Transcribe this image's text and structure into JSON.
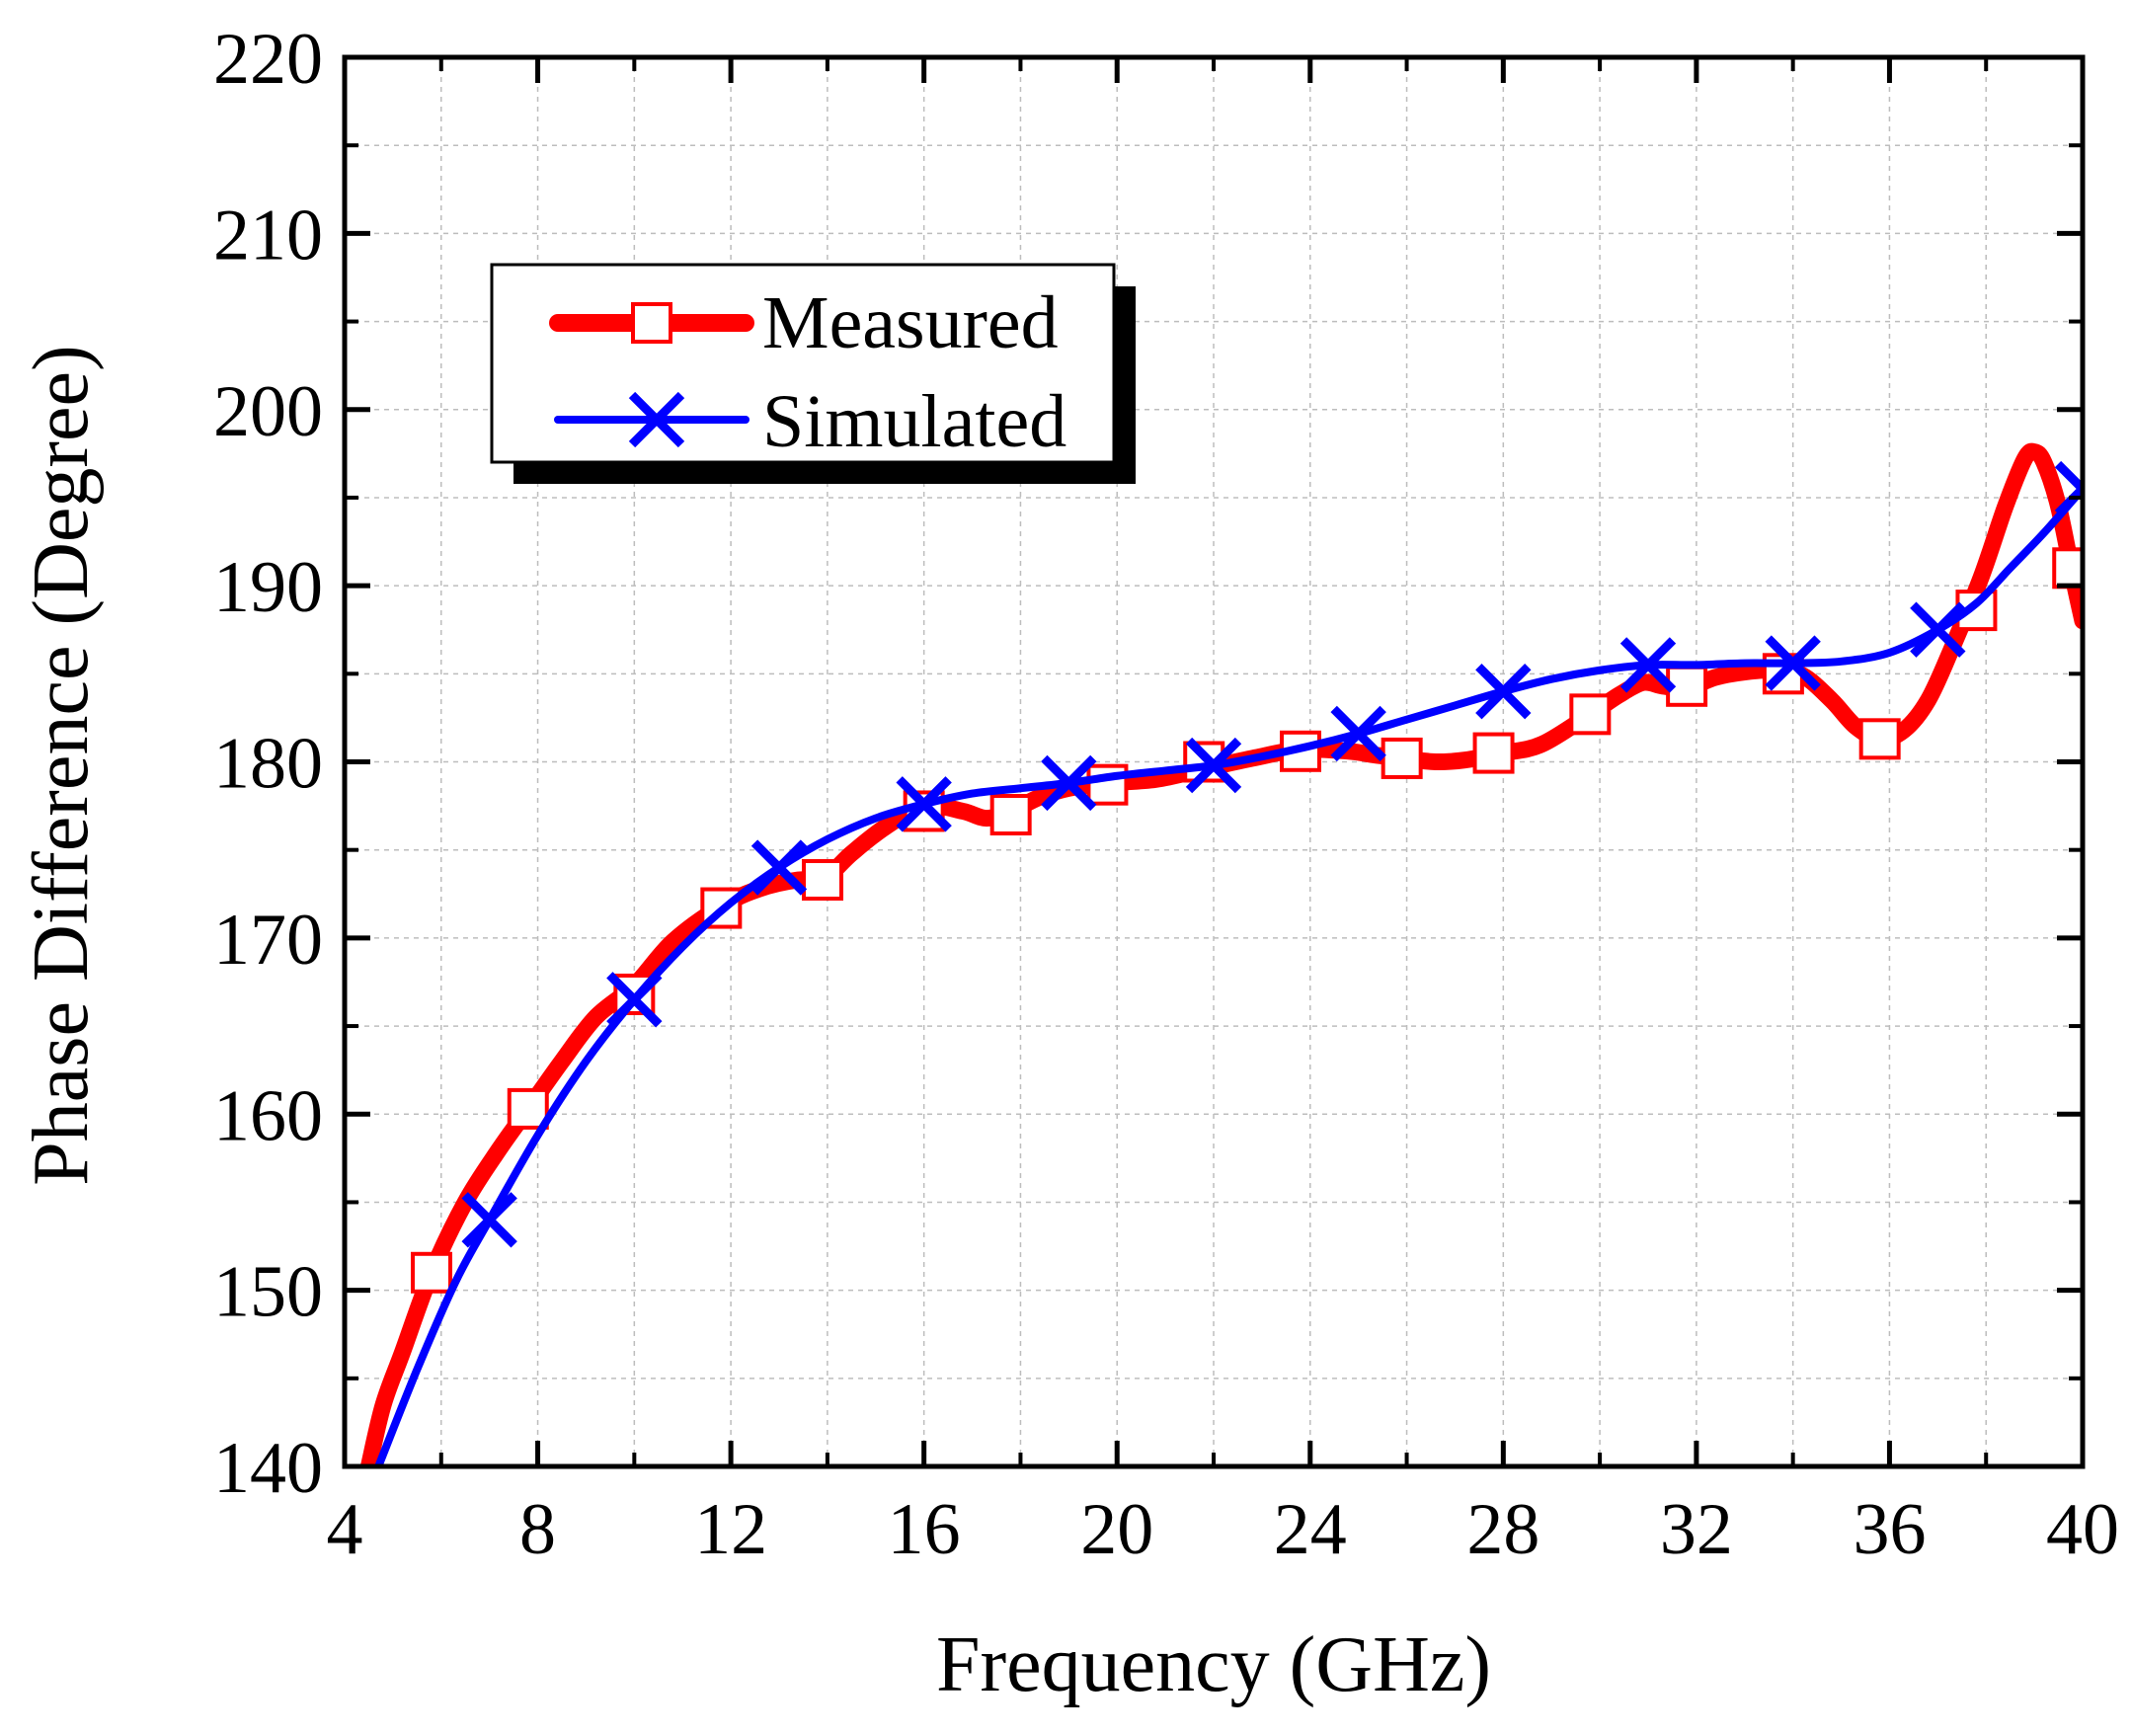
{
  "chart_data": {
    "type": "line",
    "title": "",
    "xlabel": "Frequency (GHz)",
    "ylabel": "Phase Difference (Degree)",
    "xlim": [
      4,
      40
    ],
    "ylim": [
      140,
      220
    ],
    "xticks": [
      4,
      8,
      12,
      16,
      20,
      24,
      28,
      32,
      36,
      40
    ],
    "yticks": [
      140,
      150,
      160,
      170,
      180,
      190,
      200,
      210,
      220
    ],
    "grid": true,
    "legend_position": "upper-left",
    "series": [
      {
        "name": "Measured",
        "color": "#ff0000",
        "marker": "open-square",
        "x": [
          4.5,
          4.8,
          5.2,
          5.8,
          6.5,
          7.2,
          7.8,
          8.5,
          9.2,
          10.0,
          10.8,
          11.8,
          12.6,
          13.4,
          13.9,
          14.5,
          15.2,
          16.0,
          16.8,
          17.3,
          17.8,
          18.4,
          19.0,
          19.8,
          20.8,
          21.8,
          22.8,
          23.8,
          24.8,
          25.3,
          25.9,
          26.6,
          27.2,
          28.0,
          28.8,
          29.8,
          30.4,
          30.9,
          31.3,
          31.8,
          32.4,
          33.0,
          33.6,
          34.2,
          34.8,
          35.3,
          35.8,
          36.3,
          36.8,
          37.3,
          37.9,
          38.4,
          38.8,
          39.0,
          39.2,
          39.5,
          39.8,
          40.0
        ],
        "y": [
          140.0,
          143.5,
          146.5,
          151.0,
          155.0,
          158.0,
          160.3,
          163.0,
          165.5,
          167.3,
          169.8,
          171.8,
          172.8,
          173.3,
          173.3,
          174.8,
          176.3,
          177.5,
          177.2,
          176.8,
          177.2,
          178.0,
          178.5,
          178.8,
          179.0,
          179.6,
          180.2,
          180.7,
          180.6,
          180.4,
          180.2,
          180.0,
          180.1,
          180.5,
          181.0,
          182.7,
          183.8,
          184.5,
          184.3,
          184.2,
          184.8,
          185.1,
          185.2,
          184.9,
          183.5,
          182.0,
          181.3,
          181.8,
          183.5,
          186.5,
          190.5,
          194.5,
          197.2,
          197.6,
          197.0,
          194.5,
          190.5,
          188.0
        ],
        "marker_x": [
          5.8,
          7.8,
          10.0,
          11.8,
          13.9,
          16.0,
          17.8,
          19.8,
          21.8,
          23.8,
          25.9,
          27.8,
          29.8,
          31.8,
          33.8,
          35.8,
          37.8,
          39.8
        ],
        "marker_y": [
          151.0,
          160.3,
          166.8,
          171.7,
          173.3,
          177.2,
          177.0,
          178.7,
          180.0,
          180.6,
          180.2,
          180.5,
          182.7,
          184.3,
          185.0,
          181.3,
          188.6,
          191.0
        ]
      },
      {
        "name": "Simulated",
        "color": "#0000ff",
        "marker": "x",
        "x": [
          4.7,
          5.5,
          6.3,
          7.0,
          8.0,
          9.0,
          10.0,
          11.0,
          12.0,
          13.0,
          14.0,
          15.0,
          16.0,
          17.0,
          18.0,
          19.0,
          20.0,
          21.0,
          22.0,
          23.0,
          24.0,
          25.0,
          26.0,
          27.0,
          28.0,
          29.0,
          30.0,
          31.0,
          32.0,
          33.0,
          34.0,
          35.0,
          36.0,
          37.0,
          37.8,
          38.5,
          39.2,
          40.0
        ],
        "y": [
          140.0,
          145.5,
          150.5,
          154.0,
          158.8,
          163.0,
          166.5,
          169.5,
          172.0,
          174.0,
          175.6,
          176.8,
          177.6,
          178.2,
          178.5,
          178.8,
          179.2,
          179.5,
          179.8,
          180.3,
          180.9,
          181.6,
          182.4,
          183.2,
          184.0,
          184.7,
          185.2,
          185.5,
          185.5,
          185.6,
          185.6,
          185.7,
          186.2,
          187.5,
          189.0,
          191.0,
          193.0,
          195.5
        ],
        "marker_x": [
          7.0,
          10.0,
          13.0,
          16.0,
          19.0,
          22.0,
          25.0,
          28.0,
          31.0,
          34.0,
          37.0,
          40.0
        ],
        "marker_y": [
          154.0,
          166.5,
          174.0,
          177.6,
          178.8,
          179.8,
          181.6,
          184.0,
          185.5,
          185.6,
          187.5,
          195.5
        ]
      }
    ]
  }
}
